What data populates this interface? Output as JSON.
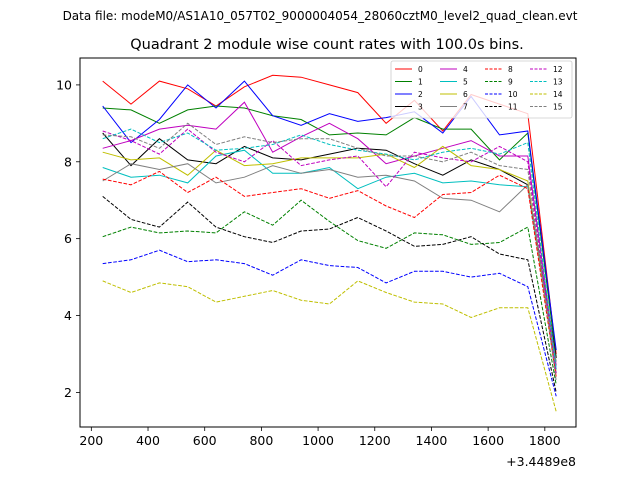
{
  "chart_data": {
    "type": "line",
    "suptitle": "Data file: modeM0/AS1A10_057T02_9000004054_28060cztM0_level2_quad_clean.evt",
    "title": "Quadrant 2 module wise count rates with 100.0s bins.",
    "xlabel": "",
    "ylabel": "",
    "x_offset_label": "+3.4489e8",
    "xlim": [
      160,
      1910
    ],
    "ylim": [
      1.1,
      10.7
    ],
    "xticks": [
      200,
      400,
      600,
      800,
      1000,
      1200,
      1400,
      1600,
      1800
    ],
    "yticks": [
      2,
      4,
      6,
      8,
      10
    ],
    "grid": false,
    "legend_position": "top-right",
    "x": [
      240,
      340,
      440,
      540,
      640,
      740,
      840,
      940,
      1040,
      1140,
      1240,
      1340,
      1440,
      1540,
      1640,
      1740,
      1840
    ],
    "series": [
      {
        "name": "0",
        "color": "#ff0000",
        "dash": "solid",
        "values": [
          10.1,
          9.5,
          10.1,
          9.9,
          9.45,
          9.95,
          10.25,
          10.2,
          10.0,
          9.8,
          9.0,
          9.6,
          8.8,
          9.75,
          9.5,
          9.25,
          3.0
        ]
      },
      {
        "name": "1",
        "color": "#008000",
        "dash": "solid",
        "values": [
          9.4,
          9.35,
          9.0,
          9.35,
          9.45,
          9.4,
          9.2,
          9.1,
          8.7,
          8.75,
          8.7,
          9.15,
          8.85,
          8.85,
          8.05,
          8.75,
          2.9
        ]
      },
      {
        "name": "2",
        "color": "#0000ff",
        "dash": "solid",
        "values": [
          9.45,
          8.5,
          9.1,
          10.0,
          9.4,
          10.1,
          9.2,
          8.95,
          9.25,
          9.05,
          9.15,
          9.3,
          8.75,
          9.7,
          8.7,
          8.8,
          3.1
        ]
      },
      {
        "name": "3",
        "color": "#000000",
        "dash": "solid",
        "values": [
          8.75,
          7.9,
          8.6,
          8.05,
          7.95,
          8.4,
          8.1,
          8.05,
          8.2,
          8.35,
          8.3,
          7.95,
          7.65,
          8.05,
          7.8,
          7.4,
          2.9
        ]
      },
      {
        "name": "4",
        "color": "#bf00bf",
        "dash": "solid",
        "values": [
          8.35,
          8.55,
          8.85,
          8.95,
          8.85,
          9.55,
          8.25,
          8.65,
          9.0,
          8.6,
          7.95,
          8.15,
          8.35,
          8.55,
          8.15,
          8.15,
          2.7
        ]
      },
      {
        "name": "5",
        "color": "#00bfbf",
        "dash": "solid",
        "values": [
          7.85,
          7.6,
          7.65,
          7.45,
          8.15,
          8.3,
          7.7,
          7.7,
          7.85,
          7.3,
          7.6,
          7.7,
          7.45,
          7.5,
          7.4,
          7.35,
          2.6
        ]
      },
      {
        "name": "6",
        "color": "#bfbf00",
        "dash": "solid",
        "values": [
          8.25,
          8.05,
          8.1,
          7.65,
          8.3,
          7.9,
          7.95,
          8.1,
          8.1,
          8.1,
          8.2,
          7.85,
          8.4,
          7.9,
          7.8,
          7.5,
          2.5
        ]
      },
      {
        "name": "7",
        "color": "#808080",
        "dash": "solid",
        "values": [
          7.5,
          7.95,
          7.8,
          7.95,
          7.45,
          7.6,
          7.9,
          7.7,
          7.8,
          7.6,
          7.65,
          7.5,
          7.05,
          7.0,
          6.7,
          7.4,
          2.8
        ]
      },
      {
        "name": "8",
        "color": "#ff0000",
        "dash": "dashed",
        "values": [
          7.55,
          7.4,
          7.75,
          7.2,
          7.6,
          7.1,
          7.2,
          7.3,
          7.05,
          7.25,
          6.85,
          6.55,
          7.15,
          7.2,
          7.65,
          7.3,
          2.4
        ]
      },
      {
        "name": "9",
        "color": "#008000",
        "dash": "dashed",
        "values": [
          6.05,
          6.3,
          6.15,
          6.2,
          6.15,
          6.7,
          6.35,
          7.0,
          6.45,
          5.95,
          5.75,
          6.15,
          6.1,
          5.85,
          5.9,
          6.3,
          2.2
        ]
      },
      {
        "name": "10",
        "color": "#0000ff",
        "dash": "dashed",
        "values": [
          5.35,
          5.45,
          5.7,
          5.4,
          5.45,
          5.35,
          5.05,
          5.45,
          5.3,
          5.25,
          4.85,
          5.15,
          5.15,
          5.0,
          5.1,
          4.75,
          1.9
        ]
      },
      {
        "name": "11",
        "color": "#000000",
        "dash": "dashed",
        "values": [
          7.1,
          6.5,
          6.3,
          6.95,
          6.3,
          6.05,
          5.9,
          6.2,
          6.25,
          6.55,
          6.2,
          5.8,
          5.85,
          6.05,
          5.6,
          5.45,
          2.0
        ]
      },
      {
        "name": "12",
        "color": "#bf00bf",
        "dash": "dashed",
        "values": [
          8.8,
          8.55,
          8.2,
          8.85,
          8.25,
          8.0,
          8.55,
          7.9,
          8.05,
          8.15,
          7.35,
          8.25,
          8.1,
          8.0,
          8.4,
          8.0,
          2.5
        ]
      },
      {
        "name": "13",
        "color": "#00bfbf",
        "dash": "dashed",
        "values": [
          8.6,
          8.85,
          8.5,
          8.75,
          8.3,
          8.35,
          8.45,
          8.7,
          8.45,
          8.3,
          8.2,
          8.05,
          8.25,
          8.35,
          8.2,
          8.5,
          2.6
        ]
      },
      {
        "name": "14",
        "color": "#bfbf00",
        "dash": "dashed",
        "values": [
          4.9,
          4.6,
          4.85,
          4.75,
          4.35,
          4.5,
          4.65,
          4.4,
          4.3,
          4.9,
          4.6,
          4.35,
          4.3,
          3.95,
          4.2,
          4.2,
          1.5
        ]
      },
      {
        "name": "15",
        "color": "#808080",
        "dash": "dashed",
        "values": [
          8.7,
          8.65,
          8.35,
          9.0,
          8.45,
          8.65,
          8.5,
          8.6,
          8.6,
          8.35,
          8.15,
          8.15,
          8.0,
          8.25,
          7.9,
          7.8,
          2.3
        ]
      }
    ]
  }
}
